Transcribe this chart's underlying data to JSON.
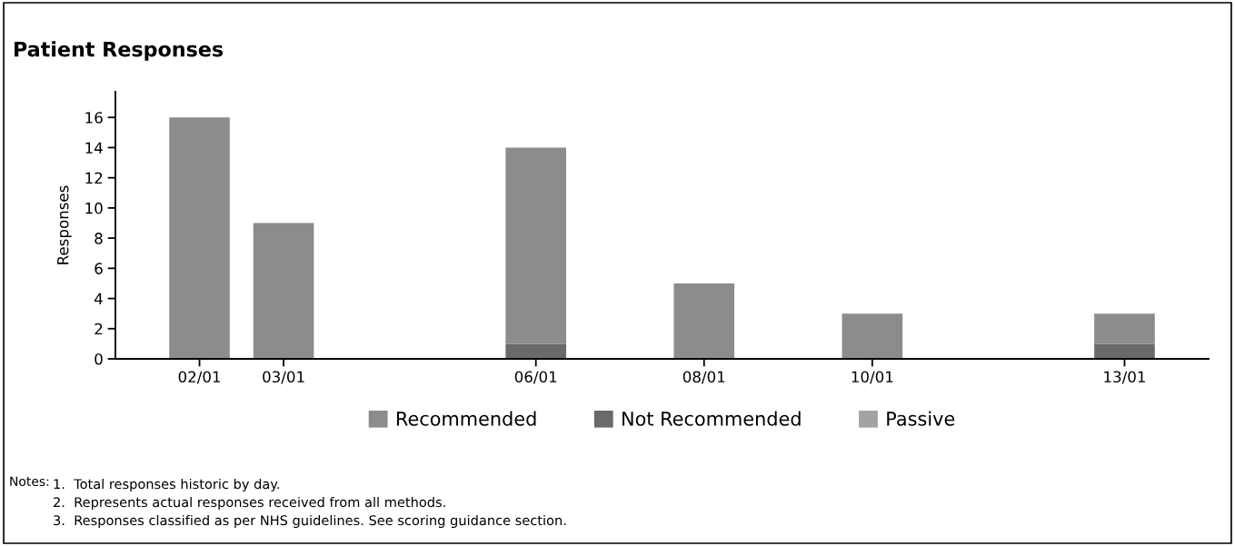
{
  "chart_data": {
    "type": "bar",
    "title": "Patient Responses",
    "ylabel": "Responses",
    "x": [
      "--01-02",
      "--01-03",
      "--01-06",
      "--01-08",
      "--01-10",
      "--01-13"
    ],
    "series": [
      {
        "name": "Passive",
        "color": "#a3a3a3",
        "values": [
          0,
          0,
          0,
          0,
          0,
          0
        ]
      },
      {
        "name": "Not Recommended",
        "color": "#6a6a6a",
        "values": [
          0,
          0,
          1,
          0,
          0,
          1
        ]
      },
      {
        "name": "Recommended",
        "color": "#8c8c8c",
        "values": [
          16,
          9,
          13,
          5,
          3,
          2
        ]
      }
    ],
    "stacked": true,
    "xlim": [
      "--01-01",
      "--01-14"
    ],
    "xticks": [
      {
        "value": "--01-02",
        "label": "02/01"
      },
      {
        "value": "--01-03",
        "label": "03/01"
      },
      {
        "value": "--01-06",
        "label": "06/01"
      },
      {
        "value": "--01-08",
        "label": "08/01"
      },
      {
        "value": "--01-10",
        "label": "10/01"
      },
      {
        "value": "--01-13",
        "label": "13/01"
      }
    ],
    "ylim": [
      0,
      17.7
    ],
    "yticks": [
      0,
      2,
      4,
      6,
      8,
      10,
      12,
      14,
      16
    ],
    "grid": false,
    "legend": "bottom",
    "annotations": [
      "Notes:",
      "1.  Total responses historic by day.",
      "2.  Represents actual responses received from all methods.",
      "3.  Responses classified as per NHS guidelines. See scoring guidance section."
    ]
  }
}
